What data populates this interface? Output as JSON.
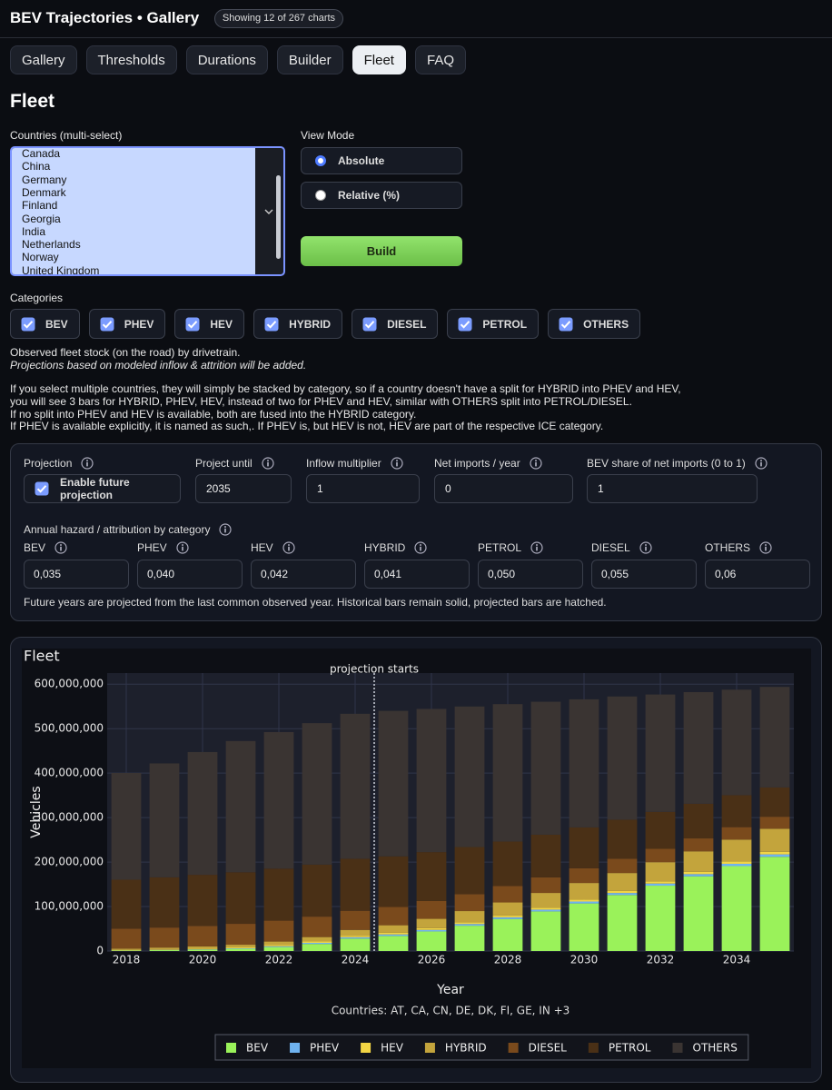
{
  "header": {
    "title": "BEV Trajectories • Gallery",
    "badge": "Showing 12 of 267 charts"
  },
  "tabs": {
    "items": [
      "Gallery",
      "Thresholds",
      "Durations",
      "Builder",
      "Fleet",
      "FAQ"
    ],
    "active": 4
  },
  "page_title": "Fleet",
  "countries": {
    "label": "Countries (multi-select)",
    "options": [
      "Canada",
      "China",
      "Germany",
      "Denmark",
      "Finland",
      "Georgia",
      "India",
      "Netherlands",
      "Norway",
      "United Kingdom"
    ]
  },
  "view_mode": {
    "label": "View Mode",
    "options": [
      "Absolute",
      "Relative (%)"
    ],
    "selected": 0
  },
  "build_button": "Build",
  "categories": {
    "label": "Categories",
    "items": [
      "BEV",
      "PHEV",
      "HEV",
      "HYBRID",
      "DIESEL",
      "PETROL",
      "OTHERS"
    ],
    "checked": [
      true,
      true,
      true,
      true,
      true,
      true,
      true
    ]
  },
  "description": "Observed fleet stock (on the road) by drivetrain.",
  "description_note": "Projections based on modeled inflow & attrition will be added.",
  "explanation": [
    "If you select multiple countries, they will simply be stacked by category, so if a country doesn't have a split for HYBRID into PHEV and HEV,",
    "you will see 3 bars for HYBRID, PHEV, HEV, instead of two for PHEV and HEV, similar with OTHERS split into PETROL/DIESEL.",
    "If no split into PHEV and HEV is available, both are fused into the HYBRID category.",
    "If PHEV is available explicitly, it is named as such,. If PHEV is, but HEV is not, HEV are part of the respective ICE category."
  ],
  "projection": {
    "label": "Projection",
    "checkbox": "Enable future projection",
    "checked": true,
    "fields": [
      {
        "label": "Project until",
        "value": "2035"
      },
      {
        "label": "Inflow multiplier",
        "value": "1"
      },
      {
        "label": "Net imports / year",
        "value": "0"
      },
      {
        "label": "BEV share of net imports (0 to 1)",
        "value": "1"
      }
    ],
    "hazard_label": "Annual hazard / attribution by category",
    "hazard": [
      {
        "label": "BEV",
        "value": "0,035"
      },
      {
        "label": "PHEV",
        "value": "0,040"
      },
      {
        "label": "HEV",
        "value": "0,042"
      },
      {
        "label": "HYBRID",
        "value": "0,041"
      },
      {
        "label": "PETROL",
        "value": "0,050"
      },
      {
        "label": "DIESEL",
        "value": "0,055"
      },
      {
        "label": "OTHERS",
        "value": "0,06"
      }
    ],
    "footnote": "Future years are projected from the last common observed year. Historical bars remain solid, projected bars are hatched."
  },
  "chart_data": {
    "type": "bar",
    "stacked": true,
    "title": "Fleet",
    "xlabel": "Year",
    "ylabel": "Vehicles",
    "caption": "Countries: AT, CA, CN, DE, DK, FI, GE, IN +3",
    "annotation": {
      "text": "projection starts",
      "x": 2024.5
    },
    "grid": true,
    "x": [
      2018,
      2019,
      2020,
      2021,
      2022,
      2023,
      2024,
      2025,
      2026,
      2027,
      2028,
      2029,
      2030,
      2031,
      2032,
      2033,
      2034,
      2035
    ],
    "xlim": [
      2017.5,
      2035.5
    ],
    "xticks": [
      2018,
      2020,
      2022,
      2024,
      2026,
      2028,
      2030,
      2032,
      2034
    ],
    "ylim": [
      0,
      625000000
    ],
    "yticks": [
      0,
      {
        "value": 100000000,
        "label": "100,000,000"
      },
      {
        "value": 200000000,
        "label": "200,000,000"
      },
      {
        "value": 300000000,
        "label": "300,000,000"
      },
      {
        "value": 400000000,
        "label": "400,000,000"
      },
      {
        "value": 500000000,
        "label": "500,000,000"
      },
      {
        "value": 600000000,
        "label": "600,000,000"
      }
    ],
    "series": [
      {
        "name": "BEV",
        "color": "#9af25a",
        "values": [
          1000000,
          2000000,
          3000000,
          5000000,
          9000000,
          16000000,
          28000000,
          34000000,
          44000000,
          57000000,
          72000000,
          89000000,
          107000000,
          126000000,
          147000000,
          168000000,
          191000000,
          212000000
        ]
      },
      {
        "name": "PHEV",
        "color": "#6fb3f0",
        "values": [
          300000,
          500000,
          800000,
          1200000,
          1800000,
          2400000,
          3000000,
          3300000,
          3500000,
          3700000,
          3900000,
          4100000,
          4300000,
          4500000,
          4700000,
          4900000,
          5100000,
          5300000
        ]
      },
      {
        "name": "HEV",
        "color": "#f2d544",
        "values": [
          1000000,
          1300000,
          1600000,
          2000000,
          2500000,
          3000000,
          3500000,
          3700000,
          3900000,
          4100000,
          4300000,
          4500000,
          4700000,
          4900000,
          5100000,
          5300000,
          5500000,
          5700000
        ]
      },
      {
        "name": "HYBRID",
        "color": "#c3a43c",
        "values": [
          3000000,
          4000000,
          5000000,
          6000000,
          8000000,
          10000000,
          13000000,
          17000000,
          21000000,
          25000000,
          29000000,
          33000000,
          37000000,
          40000000,
          43000000,
          46000000,
          49000000,
          52000000
        ]
      },
      {
        "name": "DIESEL",
        "color": "#7a4a1c",
        "values": [
          45000000,
          45000000,
          46000000,
          47000000,
          47000000,
          46000000,
          43000000,
          41000000,
          40000000,
          38000000,
          37000000,
          35000000,
          33000000,
          32000000,
          30000000,
          29000000,
          28000000,
          27000000
        ]
      },
      {
        "name": "PETROL",
        "color": "#4a3016",
        "values": [
          110000000,
          113000000,
          115000000,
          116000000,
          117000000,
          117000000,
          117000000,
          114000000,
          110000000,
          106000000,
          100000000,
          96000000,
          92000000,
          88000000,
          83000000,
          78000000,
          72000000,
          66000000
        ]
      },
      {
        "name": "OTHERS",
        "color": "#3a3432",
        "values": [
          240000000,
          256000000,
          276000000,
          295000000,
          307000000,
          318000000,
          326000000,
          327000000,
          322000000,
          316000000,
          309000000,
          299000000,
          288000000,
          277000000,
          264000000,
          251000000,
          237000000,
          226000000
        ]
      }
    ]
  }
}
